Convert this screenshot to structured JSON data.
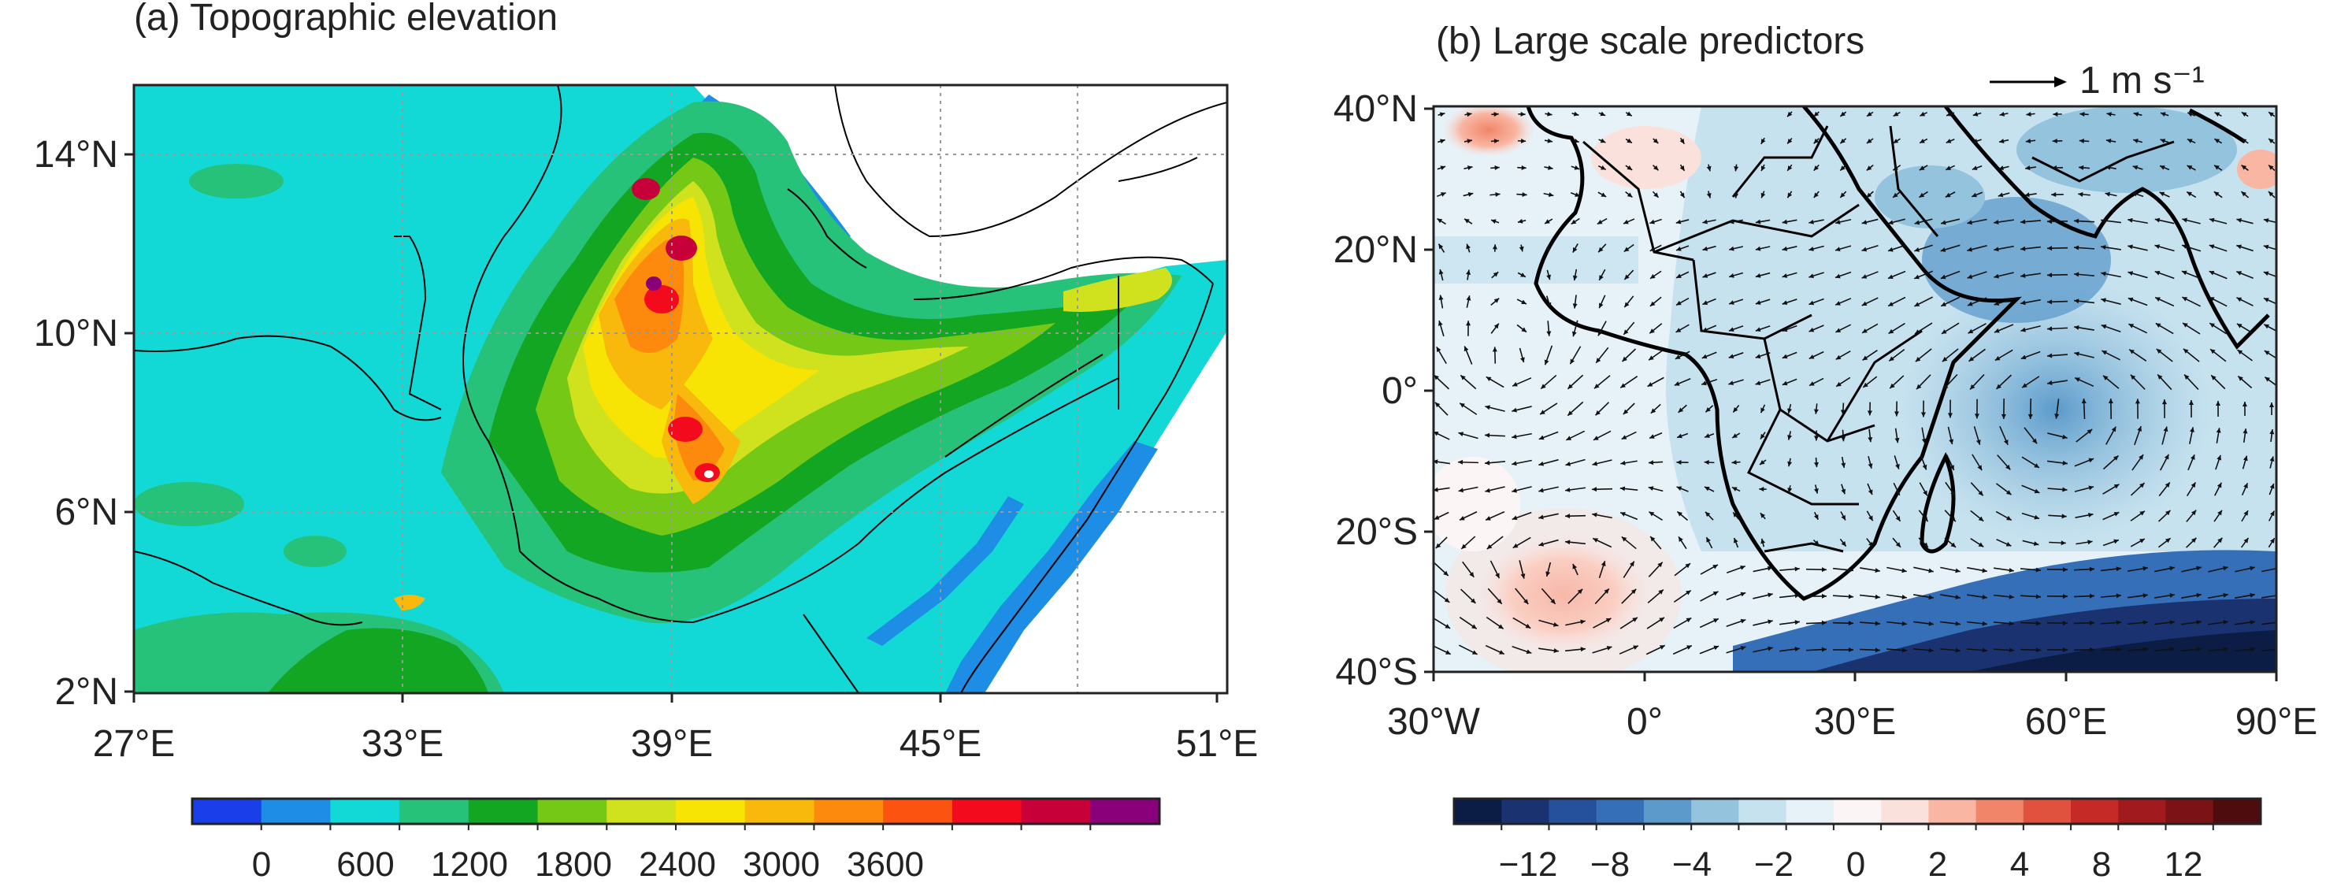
{
  "panel_a": {
    "title": "(a) Topographic elevation",
    "x_ticks": [
      "27°E",
      "33°E",
      "39°E",
      "45°E",
      "51°E"
    ],
    "y_ticks": [
      "14°N",
      "10°N",
      "6°N",
      "2°N"
    ],
    "colorbar": {
      "labels": [
        "0",
        "600",
        "1200",
        "1800",
        "2400",
        "3000",
        "3600"
      ],
      "colors": [
        "#1a3fe8",
        "#1e8de6",
        "#12d8d6",
        "#26c27a",
        "#12a622",
        "#76c817",
        "#cfe21d",
        "#f7e404",
        "#f9b80c",
        "#fd8a0c",
        "#fc5311",
        "#f40a1d",
        "#c8003a",
        "#8a007a"
      ]
    }
  },
  "panel_b": {
    "title": "(b) Large scale predictors",
    "vector_key": "1 m s⁻¹",
    "x_ticks": [
      "30°W",
      "0°",
      "30°E",
      "60°E",
      "90°E"
    ],
    "y_ticks": [
      "40°N",
      "20°N",
      "0°",
      "20°S",
      "40°S"
    ],
    "colorbar": {
      "labels": [
        "−12",
        "−8",
        "−4",
        "−2",
        "0",
        "2",
        "4",
        "8",
        "12"
      ],
      "colors": [
        "#0b1d44",
        "#1a3270",
        "#25519c",
        "#356fb7",
        "#5b9acb",
        "#93c3dd",
        "#c7e2ef",
        "#e6f2f8",
        "#fbf6f5",
        "#fbe1dc",
        "#f9b6a3",
        "#f18569",
        "#e0523e",
        "#c62a27",
        "#a01a1e",
        "#7a1216",
        "#4f0c0e"
      ]
    }
  }
}
